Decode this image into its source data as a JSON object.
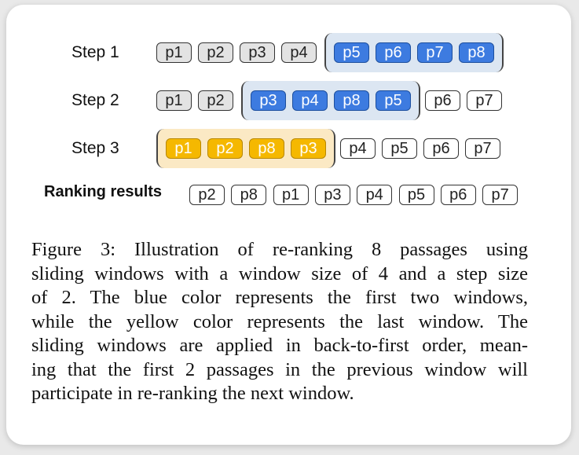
{
  "steps": [
    {
      "label": "Step 1",
      "before": [
        "p1",
        "p2",
        "p3",
        "p4"
      ],
      "window": [
        "p5",
        "p6",
        "p7",
        "p8"
      ],
      "after": [],
      "window_color": "blue"
    },
    {
      "label": "Step 2",
      "before": [
        "p1",
        "p2"
      ],
      "window": [
        "p3",
        "p4",
        "p8",
        "p5"
      ],
      "after": [
        "p6",
        "p7"
      ],
      "window_color": "blue"
    },
    {
      "label": "Step 3",
      "before": [],
      "window": [
        "p1",
        "p2",
        "p8",
        "p3"
      ],
      "after": [
        "p4",
        "p5",
        "p6",
        "p7"
      ],
      "window_color": "yellow"
    }
  ],
  "ranking": {
    "label": "Ranking results",
    "items": [
      "p2",
      "p8",
      "p1",
      "p3",
      "p4",
      "p5",
      "p6",
      "p7"
    ]
  },
  "caption": {
    "lines": [
      "Figure 3: Illustration of re-ranking 8 passages using",
      "sliding windows with a window size of 4 and a step size",
      "of 2. The blue color represents the first two windows,",
      "while the yellow color represents the last window. The",
      "sliding windows are applied in back-to-first order, mean-",
      "ing that the first 2 passages in the previous window will",
      "participate in re-ranking the next window."
    ]
  },
  "colors": {
    "blue": "#3d7be0",
    "blue_window": "#dce6f2",
    "yellow": "#f5b800",
    "yellow_window": "#fbe9c4",
    "gray": "#e3e3e3"
  }
}
